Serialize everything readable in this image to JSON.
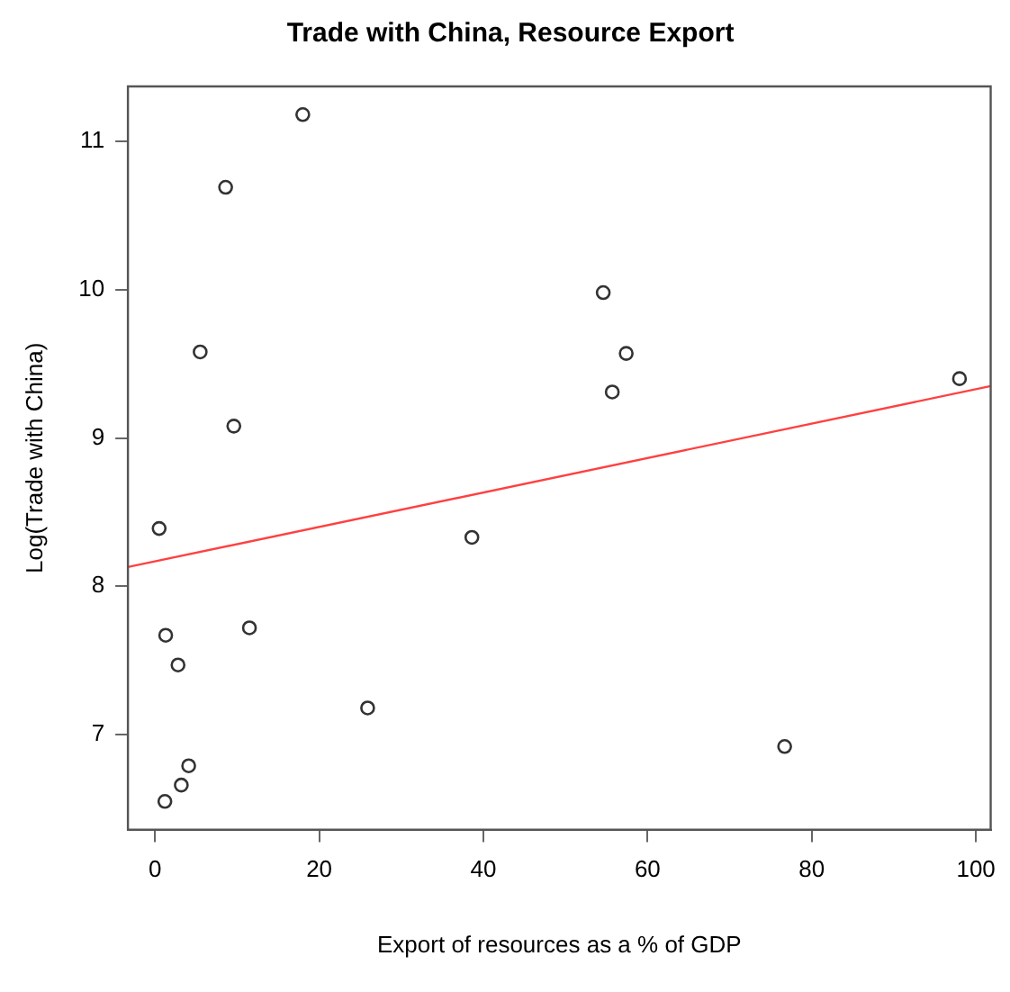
{
  "chart_data": {
    "type": "scatter",
    "title": "Trade with China, Resource Export",
    "xlabel": "Export of resources as a % of GDP",
    "ylabel": "Log(Trade with China)",
    "xlim": [
      -3.3,
      101.8
    ],
    "ylim": [
      6.36,
      11.37
    ],
    "xticks": [
      0,
      20,
      40,
      60,
      80,
      100
    ],
    "yticks": [
      7,
      8,
      9,
      10,
      11
    ],
    "grid": false,
    "legend": false,
    "marker": "circle",
    "series": [
      {
        "color": "#333333",
        "x": [
          18.0,
          8.6,
          5.5,
          9.6,
          0.5,
          38.6,
          1.3,
          2.8,
          11.5,
          25.9,
          4.1,
          3.2,
          1.2,
          54.6,
          57.4,
          55.7,
          98.0,
          76.7
        ],
        "values": [
          11.18,
          10.69,
          9.58,
          9.08,
          8.39,
          8.33,
          7.67,
          7.47,
          7.72,
          7.18,
          6.79,
          6.66,
          6.55,
          9.98,
          9.57,
          9.31,
          9.4,
          6.92
        ]
      },
      {
        "type": "line",
        "color": "#ff4040",
        "marker": "none",
        "line_style": "solid",
        "x": [
          -3.3,
          101.8
        ],
        "values": [
          8.13,
          9.35
        ]
      }
    ]
  }
}
